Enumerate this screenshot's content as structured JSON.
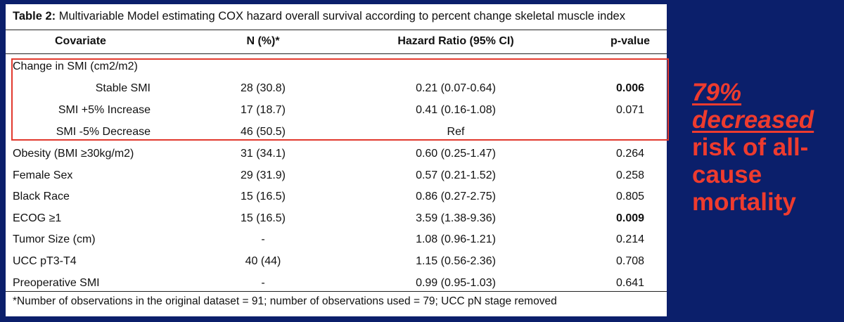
{
  "title": {
    "label": "Table 2:",
    "text": " Multivariable Model estimating COX hazard overall survival according to percent change skeletal muscle index"
  },
  "headers": {
    "covariate": "Covariate",
    "n": "N (%)*",
    "hr": "Hazard Ratio (95% CI)",
    "p": "p-value"
  },
  "group": {
    "label": "Change in SMI (cm2/m2)",
    "rows": [
      {
        "covariate": "Stable SMI",
        "n": "28 (30.8)",
        "hr": "0.21 (0.07-0.64)",
        "p": "0.006",
        "p_bold": true
      },
      {
        "covariate": "SMI +5% Increase",
        "n": "17 (18.7)",
        "hr": "0.41 (0.16-1.08)",
        "p": "0.071",
        "p_bold": false
      },
      {
        "covariate": "SMI -5% Decrease",
        "n": "46 (50.5)",
        "hr": "Ref",
        "p": "",
        "p_bold": false
      }
    ]
  },
  "rows": [
    {
      "covariate": "Obesity (BMI ≥30kg/m2)",
      "n": "31 (34.1)",
      "hr": "0.60 (0.25-1.47)",
      "p": "0.264",
      "p_bold": false
    },
    {
      "covariate": "Female Sex",
      "n": "29 (31.9)",
      "hr": "0.57 (0.21-1.52)",
      "p": "0.258",
      "p_bold": false
    },
    {
      "covariate": "Black Race",
      "n": "15 (16.5)",
      "hr": "0.86 (0.27-2.75)",
      "p": "0.805",
      "p_bold": false
    },
    {
      "covariate": "ECOG ≥1",
      "n": "15 (16.5)",
      "hr": "3.59 (1.38-9.36)",
      "p": "0.009",
      "p_bold": true
    },
    {
      "covariate": "Tumor Size (cm)",
      "n": "-",
      "hr": "1.08 (0.96-1.21)",
      "p": "0.214",
      "p_bold": false
    },
    {
      "covariate": "UCC pT3-T4",
      "n": "40 (44)",
      "hr": "1.15 (0.56-2.36)",
      "p": "0.708",
      "p_bold": false
    },
    {
      "covariate": "Preoperative SMI",
      "n": "-",
      "hr": "0.99 (0.95-1.03)",
      "p": "0.641",
      "p_bold": false
    }
  ],
  "footnote": "*Number of observations in the original dataset = 91; number of observations used = 79; UCC pN stage removed",
  "callout": {
    "line1": "79%",
    "line2": "decreased",
    "line3": "risk of all-",
    "line4": "cause",
    "line5": "mortality"
  },
  "colors": {
    "background": "#0b1f6b",
    "accent": "#e23a2e",
    "callout": "#ee3b2e"
  }
}
